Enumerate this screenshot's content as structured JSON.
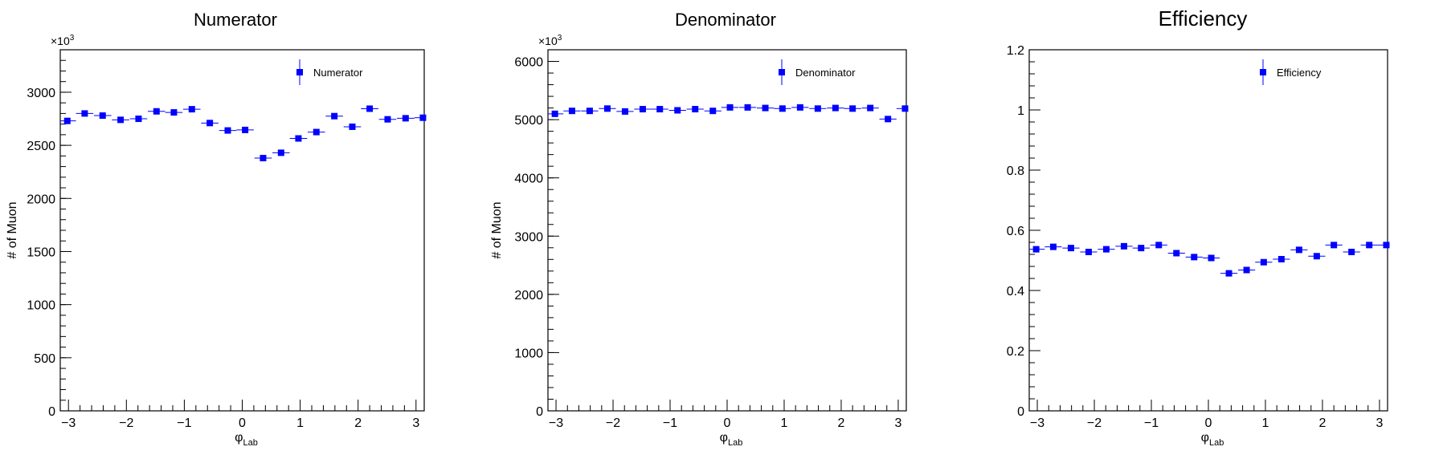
{
  "chart_data": [
    {
      "type": "scatter",
      "title": "Numerator",
      "xlabel_main": "φ",
      "xlabel_sub": "Lab",
      "ylabel": "# of Muon",
      "y_multiplier": "×10",
      "y_multiplier_exp": "3",
      "xlim": [
        -3.14159,
        3.14159
      ],
      "ylim": [
        0,
        3400
      ],
      "x_ticks": [
        -3,
        -2,
        -1,
        0,
        1,
        2,
        3
      ],
      "x_tick_labels": [
        "−3",
        "−2",
        "−1",
        "0",
        "1",
        "2",
        "3"
      ],
      "y_ticks": [
        0,
        500,
        1000,
        1500,
        2000,
        2500,
        3000
      ],
      "y_tick_labels": [
        "0",
        "500",
        "1000",
        "1500",
        "2000",
        "2500",
        "3000"
      ],
      "legend": "Numerator",
      "legend_position": "top-right",
      "series": [
        {
          "name": "Numerator",
          "x": [
            -3.02,
            -2.72,
            -2.41,
            -2.1,
            -1.79,
            -1.48,
            -1.18,
            -0.87,
            -0.56,
            -0.25,
            0.05,
            0.36,
            0.67,
            0.97,
            1.28,
            1.59,
            1.9,
            2.2,
            2.51,
            2.82,
            3.12
          ],
          "values": [
            2730,
            2800,
            2780,
            2740,
            2750,
            2820,
            2810,
            2840,
            2710,
            2640,
            2645,
            2380,
            2430,
            2565,
            2625,
            2775,
            2675,
            2845,
            2745,
            2755,
            2760
          ]
        }
      ]
    },
    {
      "type": "scatter",
      "title": "Denominator",
      "xlabel_main": "φ",
      "xlabel_sub": "Lab",
      "ylabel": "# of Muon",
      "y_multiplier": "×10",
      "y_multiplier_exp": "3",
      "xlim": [
        -3.14159,
        3.14159
      ],
      "ylim": [
        0,
        6200
      ],
      "x_ticks": [
        -3,
        -2,
        -1,
        0,
        1,
        2,
        3
      ],
      "x_tick_labels": [
        "−3",
        "−2",
        "−1",
        "0",
        "1",
        "2",
        "3"
      ],
      "y_ticks": [
        0,
        1000,
        2000,
        3000,
        4000,
        5000,
        6000
      ],
      "y_tick_labels": [
        "0",
        "1000",
        "2000",
        "3000",
        "4000",
        "5000",
        "6000"
      ],
      "legend": "Denominator",
      "legend_position": "top-right",
      "series": [
        {
          "name": "Denominator",
          "x": [
            -3.02,
            -2.72,
            -2.41,
            -2.1,
            -1.79,
            -1.48,
            -1.18,
            -0.87,
            -0.56,
            -0.25,
            0.05,
            0.36,
            0.67,
            0.97,
            1.28,
            1.59,
            1.9,
            2.2,
            2.51,
            2.82,
            3.12
          ],
          "values": [
            5100,
            5150,
            5150,
            5190,
            5140,
            5180,
            5180,
            5160,
            5180,
            5150,
            5210,
            5210,
            5200,
            5190,
            5210,
            5190,
            5200,
            5190,
            5200,
            5010,
            5190
          ]
        }
      ]
    },
    {
      "type": "scatter",
      "title": "Efficiency",
      "xlabel_main": "φ",
      "xlabel_sub": "Lab",
      "ylabel": "",
      "xlim": [
        -3.14159,
        3.14159
      ],
      "ylim": [
        0,
        1.2
      ],
      "x_ticks": [
        -3,
        -2,
        -1,
        0,
        1,
        2,
        3
      ],
      "x_tick_labels": [
        "−3",
        "−2",
        "−1",
        "0",
        "1",
        "2",
        "3"
      ],
      "y_ticks": [
        0,
        0.2,
        0.4,
        0.6,
        0.8,
        1,
        1.2
      ],
      "y_tick_labels": [
        "0",
        "0.2",
        "0.4",
        "0.6",
        "0.8",
        "1",
        "1.2"
      ],
      "legend": "Efficiency",
      "legend_position": "top-right",
      "series": [
        {
          "name": "Efficiency",
          "x": [
            -3.02,
            -2.72,
            -2.41,
            -2.1,
            -1.79,
            -1.48,
            -1.18,
            -0.87,
            -0.56,
            -0.25,
            0.05,
            0.36,
            0.67,
            0.97,
            1.28,
            1.59,
            1.9,
            2.2,
            2.51,
            2.82,
            3.12
          ],
          "values": [
            0.537,
            0.545,
            0.541,
            0.528,
            0.537,
            0.547,
            0.541,
            0.551,
            0.524,
            0.511,
            0.508,
            0.457,
            0.468,
            0.494,
            0.504,
            0.535,
            0.514,
            0.551,
            0.528,
            0.551,
            0.551
          ]
        }
      ]
    }
  ],
  "colors": {
    "marker": "#0000ff",
    "axis": "#000000",
    "background": "#ffffff"
  }
}
